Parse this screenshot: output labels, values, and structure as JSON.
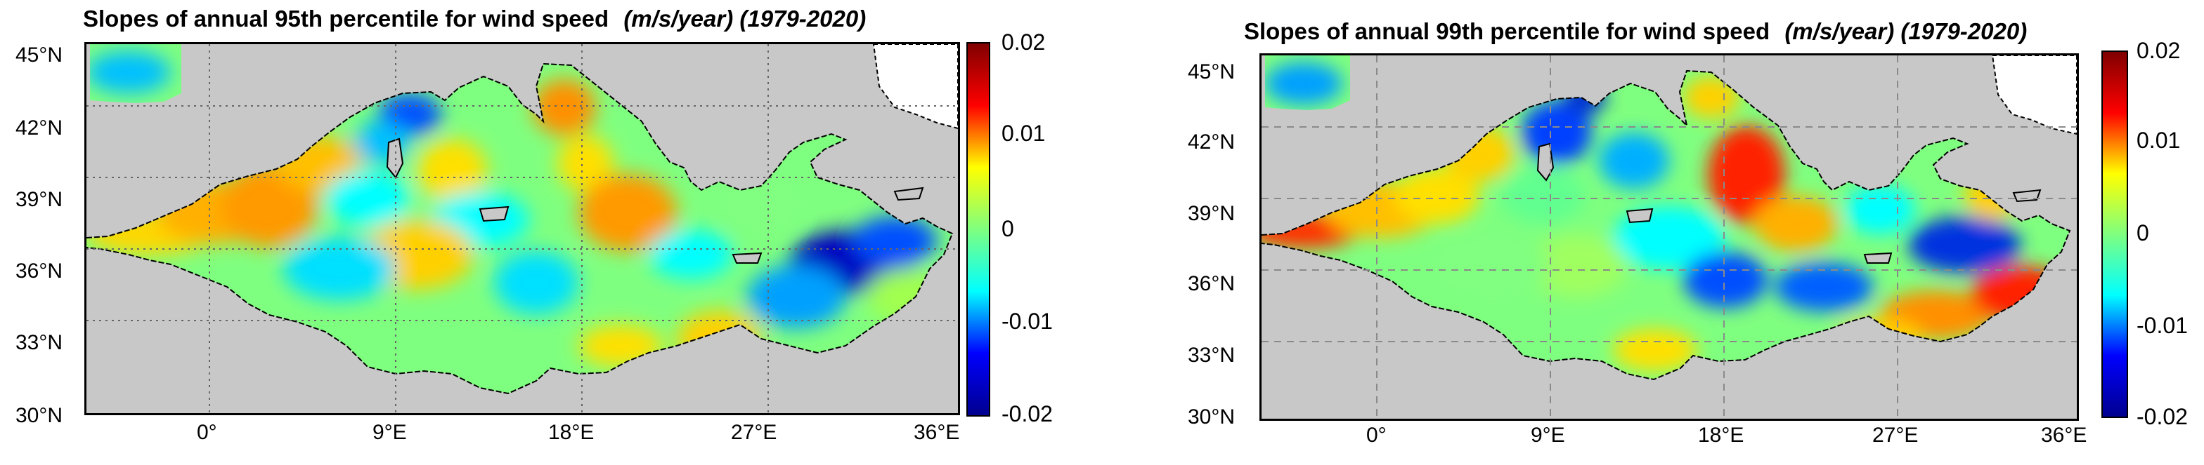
{
  "colorbar": {
    "min": -0.02,
    "max": 0.02,
    "tick_labels": [
      "0.02",
      "0.01",
      "0",
      "-0.01",
      "-0.02"
    ],
    "colors": [
      "#00008f",
      "#0000ff",
      "#00ffff",
      "#7fff7f",
      "#ffff00",
      "#ff0000",
      "#800000"
    ]
  },
  "panels": [
    {
      "title": "Slopes of annual 95th percentile for wind speed",
      "units": "(m/s/year) (1979-2020)",
      "lat_labels": [
        "45°N",
        "42°N",
        "39°N",
        "36°N",
        "33°N",
        "30°N"
      ],
      "lon_labels": [
        "0°",
        "9°E",
        "18°E",
        "27°E",
        "36°E"
      ],
      "land_color": "#c8c8c8",
      "sea_color": "#ffffff",
      "grid": "dotted"
    },
    {
      "title": "Slopes of annual 99th percentile for wind speed",
      "units": "(m/s/year) (1979-2020)",
      "lat_labels": [
        "45°N",
        "42°N",
        "39°N",
        "36°N",
        "33°N",
        "30°N"
      ],
      "lon_labels": [
        "0°",
        "9°E",
        "18°E",
        "27°E",
        "36°E"
      ],
      "land_color": "#c8c8c8",
      "sea_color": "#ffffff",
      "grid": "dashed"
    }
  ]
}
